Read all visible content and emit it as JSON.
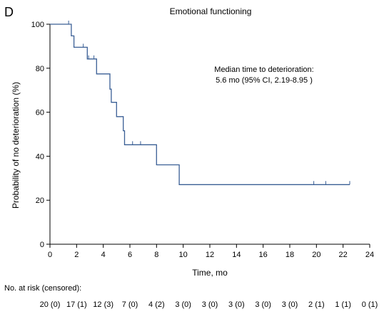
{
  "panel_label": "D",
  "chart_data": {
    "type": "line",
    "subtype": "kaplan-meier",
    "title": "Emotional functioning",
    "xlabel": "Time, mo",
    "ylabel": "Probability of no deterioration (%)",
    "xlim": [
      0,
      24
    ],
    "ylim": [
      0,
      100
    ],
    "xticks": [
      0,
      2,
      4,
      6,
      8,
      10,
      12,
      14,
      16,
      18,
      20,
      22,
      24
    ],
    "yticks": [
      0,
      20,
      40,
      60,
      80,
      100
    ],
    "grid": false,
    "line_color": "#3a5f95",
    "annotation": {
      "line1": "Median time to deterioration:",
      "line2": "5.6 mo (95% CI, 2.19-8.95 )"
    },
    "series": [
      {
        "steps": [
          [
            0,
            100
          ],
          [
            1.6,
            100
          ],
          [
            1.6,
            94.7
          ],
          [
            1.8,
            94.7
          ],
          [
            1.8,
            89.5
          ],
          [
            2.8,
            89.5
          ],
          [
            2.8,
            84.2
          ],
          [
            3.5,
            84.2
          ],
          [
            3.5,
            77.4
          ],
          [
            4.5,
            77.4
          ],
          [
            4.5,
            70.5
          ],
          [
            4.6,
            70.5
          ],
          [
            4.6,
            64.5
          ],
          [
            5.0,
            64.5
          ],
          [
            5.0,
            58.0
          ],
          [
            5.5,
            58.0
          ],
          [
            5.5,
            51.6
          ],
          [
            5.6,
            51.6
          ],
          [
            5.6,
            45.2
          ],
          [
            8.0,
            45.2
          ],
          [
            8.0,
            36.1
          ],
          [
            9.7,
            36.1
          ],
          [
            9.7,
            27.1
          ],
          [
            22.5,
            27.1
          ]
        ],
        "censored": [
          [
            1.4,
            100
          ],
          [
            2.5,
            89.5
          ],
          [
            2.9,
            84.2
          ],
          [
            3.3,
            84.2
          ],
          [
            6.2,
            45.2
          ],
          [
            6.8,
            45.2
          ],
          [
            19.8,
            27.1
          ],
          [
            20.7,
            27.1
          ],
          [
            22.5,
            27.1
          ]
        ]
      }
    ],
    "risk_table": {
      "label": "No. at risk (censored):",
      "values": [
        "20 (0)",
        "17 (1)",
        "12 (3)",
        "7 (0)",
        "4 (2)",
        "3 (0)",
        "3 (0)",
        "3 (0)",
        "3 (0)",
        "3 (0)",
        "2 (1)",
        "1 (1)",
        "0 (1)"
      ]
    }
  }
}
